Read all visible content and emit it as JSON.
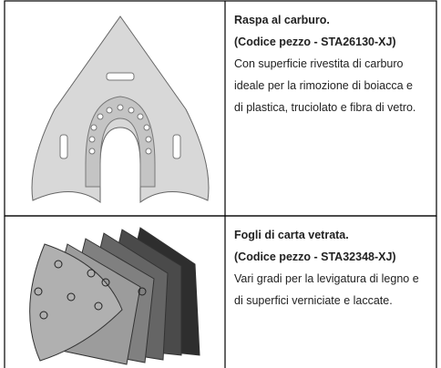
{
  "rows": [
    {
      "title": "Raspa al carburo.",
      "code": "(Codice pezzo - STA26130-XJ)",
      "lines": [
        "Con superficie rivestita di carburo",
        "ideale per la rimozione di boiacca e",
        "di plastica, truciolato e fibra di vetro."
      ]
    },
    {
      "title": "Fogli di carta vetrata.",
      "code": "(Codice pezzo - STA32348-XJ)",
      "lines": [
        "Vari gradi per la levigatura di legno e",
        "di superfici verniciate e laccate."
      ]
    }
  ]
}
